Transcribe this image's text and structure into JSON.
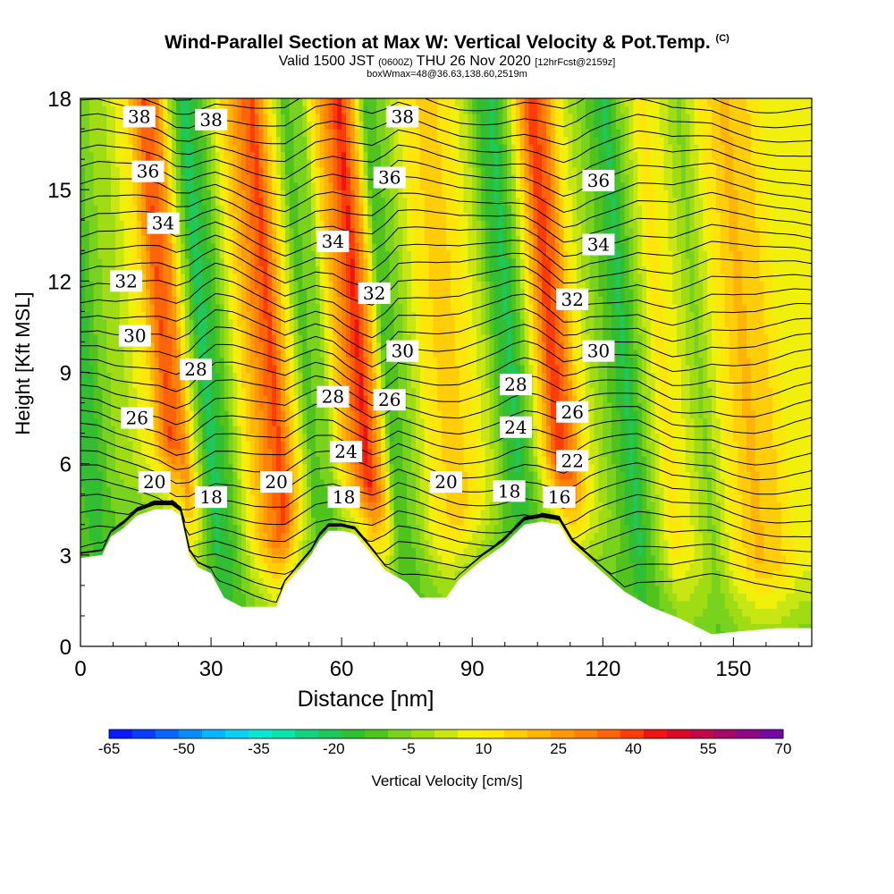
{
  "header": {
    "title": "Wind-Parallel Section at Max W: Vertical Velocity & Pot.Temp.",
    "title_copyright": "(C)",
    "subtitle_valid": "Valid 1500 JST",
    "subtitle_utc": "(0600Z)",
    "subtitle_date": "THU 26 Nov 2020",
    "subtitle_fcst": "[12hrFcst@2159z]",
    "subtitle_box": "boxWmax=48@36.63,138.60,2519m"
  },
  "colorbar": {
    "label": "Vertical Velocity [cm/s]",
    "ticks": [
      "-65",
      "-50",
      "-35",
      "-20",
      "-5",
      "10",
      "25",
      "40",
      "55",
      "70"
    ],
    "colors": [
      "#0a1aff",
      "#0a3cff",
      "#0a64ff",
      "#0a8cff",
      "#0ab4ff",
      "#0ad2f0",
      "#0ae6d2",
      "#0ae6aa",
      "#14d282",
      "#1ec85a",
      "#32be32",
      "#50c31e",
      "#78d21e",
      "#a0dc14",
      "#c8e614",
      "#f0f00a",
      "#ffe60a",
      "#ffcd0a",
      "#ffb40a",
      "#ff9b0a",
      "#ff820a",
      "#ff640a",
      "#ff3c0a",
      "#f01414",
      "#d70a28",
      "#be0a46",
      "#a50a64",
      "#8c0a82",
      "#730aa0"
    ]
  },
  "chart_data": {
    "type": "heatmap",
    "title": "Wind-Parallel Section at Max W: Vertical Velocity & Pot.Temp.",
    "xlabel": "Distance [nm]",
    "ylabel": "Height [Kft MSL]",
    "xlim": [
      0,
      168
    ],
    "ylim": [
      0,
      18
    ],
    "xticks": [
      0,
      30,
      60,
      90,
      120,
      150
    ],
    "yticks": [
      0,
      3,
      6,
      9,
      12,
      15,
      18
    ],
    "color_field": "Vertical Velocity [cm/s]",
    "color_range": [
      -65,
      70
    ],
    "contour_field": "Potential temperature",
    "terrain": [
      [
        0,
        2.9
      ],
      [
        5,
        3.0
      ],
      [
        7,
        3.6
      ],
      [
        10,
        3.9
      ],
      [
        13,
        4.3
      ],
      [
        17,
        4.5
      ],
      [
        21,
        4.5
      ],
      [
        23,
        4.3
      ],
      [
        25,
        3.0
      ],
      [
        27,
        2.6
      ],
      [
        30,
        2.4
      ],
      [
        33,
        1.6
      ],
      [
        37,
        1.3
      ],
      [
        45,
        1.3
      ],
      [
        47,
        2.0
      ],
      [
        50,
        2.5
      ],
      [
        53,
        3.0
      ],
      [
        55,
        3.5
      ],
      [
        57,
        3.8
      ],
      [
        60,
        3.8
      ],
      [
        63,
        3.7
      ],
      [
        66,
        3.2
      ],
      [
        70,
        2.5
      ],
      [
        75,
        2.1
      ],
      [
        78,
        1.6
      ],
      [
        84,
        1.6
      ],
      [
        87,
        2.2
      ],
      [
        92,
        2.8
      ],
      [
        97,
        3.3
      ],
      [
        102,
        4.0
      ],
      [
        106,
        4.1
      ],
      [
        110,
        4.0
      ],
      [
        113,
        3.3
      ],
      [
        117,
        2.8
      ],
      [
        121,
        2.3
      ],
      [
        125,
        1.8
      ],
      [
        131,
        1.3
      ],
      [
        138,
        0.9
      ],
      [
        145,
        0.4
      ],
      [
        152,
        0.5
      ],
      [
        160,
        0.6
      ],
      [
        168,
        0.6
      ]
    ],
    "w_columns": [
      {
        "x": 0,
        "w": -12
      },
      {
        "x": 4,
        "w": -18
      },
      {
        "x": 8,
        "w": -6
      },
      {
        "x": 13,
        "w": 0
      },
      {
        "x": 18,
        "w": 12
      },
      {
        "x": 22,
        "w": 38
      },
      {
        "x": 25,
        "w": 30
      },
      {
        "x": 28,
        "w": 0
      },
      {
        "x": 31,
        "w": -22
      },
      {
        "x": 35,
        "w": -12
      },
      {
        "x": 40,
        "w": 14
      },
      {
        "x": 44,
        "w": 30
      },
      {
        "x": 47,
        "w": 40
      },
      {
        "x": 50,
        "w": 18
      },
      {
        "x": 54,
        "w": -10
      },
      {
        "x": 58,
        "w": -8
      },
      {
        "x": 61,
        "w": 14
      },
      {
        "x": 64,
        "w": 30
      },
      {
        "x": 67,
        "w": 44
      },
      {
        "x": 70,
        "w": 22
      },
      {
        "x": 73,
        "w": -14
      },
      {
        "x": 77,
        "w": -6
      },
      {
        "x": 82,
        "w": 10
      },
      {
        "x": 87,
        "w": 18
      },
      {
        "x": 92,
        "w": 10
      },
      {
        "x": 96,
        "w": 0
      },
      {
        "x": 99,
        "w": -14
      },
      {
        "x": 102,
        "w": -20
      },
      {
        "x": 105,
        "w": -6
      },
      {
        "x": 108,
        "w": 18
      },
      {
        "x": 111,
        "w": 42
      },
      {
        "x": 114,
        "w": 32
      },
      {
        "x": 117,
        "w": 10
      },
      {
        "x": 120,
        "w": 0
      },
      {
        "x": 124,
        "w": -10
      },
      {
        "x": 128,
        "w": -20
      },
      {
        "x": 132,
        "w": -4
      },
      {
        "x": 136,
        "w": 12
      },
      {
        "x": 140,
        "w": 6
      },
      {
        "x": 145,
        "w": -6
      },
      {
        "x": 150,
        "w": 10
      },
      {
        "x": 155,
        "w": 20
      },
      {
        "x": 160,
        "w": 16
      },
      {
        "x": 164,
        "w": 8
      },
      {
        "x": 168,
        "w": 6
      }
    ],
    "theta_labels": [
      {
        "text": "38",
        "x": 13.5,
        "y": 17.4
      },
      {
        "text": "38",
        "x": 30,
        "y": 17.3
      },
      {
        "text": "38",
        "x": 74,
        "y": 17.4
      },
      {
        "text": "36",
        "x": 15.5,
        "y": 15.6
      },
      {
        "text": "36",
        "x": 71,
        "y": 15.4
      },
      {
        "text": "36",
        "x": 119,
        "y": 15.3
      },
      {
        "text": "34",
        "x": 19,
        "y": 13.9
      },
      {
        "text": "34",
        "x": 58,
        "y": 13.3
      },
      {
        "text": "34",
        "x": 119,
        "y": 13.2
      },
      {
        "text": "32",
        "x": 10.5,
        "y": 12.0
      },
      {
        "text": "32",
        "x": 67.5,
        "y": 11.6
      },
      {
        "text": "32",
        "x": 113,
        "y": 11.4
      },
      {
        "text": "30",
        "x": 12.5,
        "y": 10.2
      },
      {
        "text": "30",
        "x": 74,
        "y": 9.7
      },
      {
        "text": "30",
        "x": 119,
        "y": 9.7
      },
      {
        "text": "28",
        "x": 26.5,
        "y": 9.1
      },
      {
        "text": "28",
        "x": 58,
        "y": 8.2
      },
      {
        "text": "28",
        "x": 100,
        "y": 8.6
      },
      {
        "text": "26",
        "x": 13,
        "y": 7.5
      },
      {
        "text": "26",
        "x": 71,
        "y": 8.1
      },
      {
        "text": "26",
        "x": 113,
        "y": 7.7
      },
      {
        "text": "24",
        "x": 61,
        "y": 6.4
      },
      {
        "text": "24",
        "x": 100,
        "y": 7.2
      },
      {
        "text": "22",
        "x": 113,
        "y": 6.1
      },
      {
        "text": "20",
        "x": 17,
        "y": 5.4
      },
      {
        "text": "20",
        "x": 45,
        "y": 5.4
      },
      {
        "text": "20",
        "x": 84,
        "y": 5.4
      },
      {
        "text": "18",
        "x": 30,
        "y": 4.9
      },
      {
        "text": "18",
        "x": 60.5,
        "y": 4.9
      },
      {
        "text": "18",
        "x": 98.5,
        "y": 5.1
      },
      {
        "text": "16",
        "x": 110,
        "y": 4.9
      }
    ]
  }
}
